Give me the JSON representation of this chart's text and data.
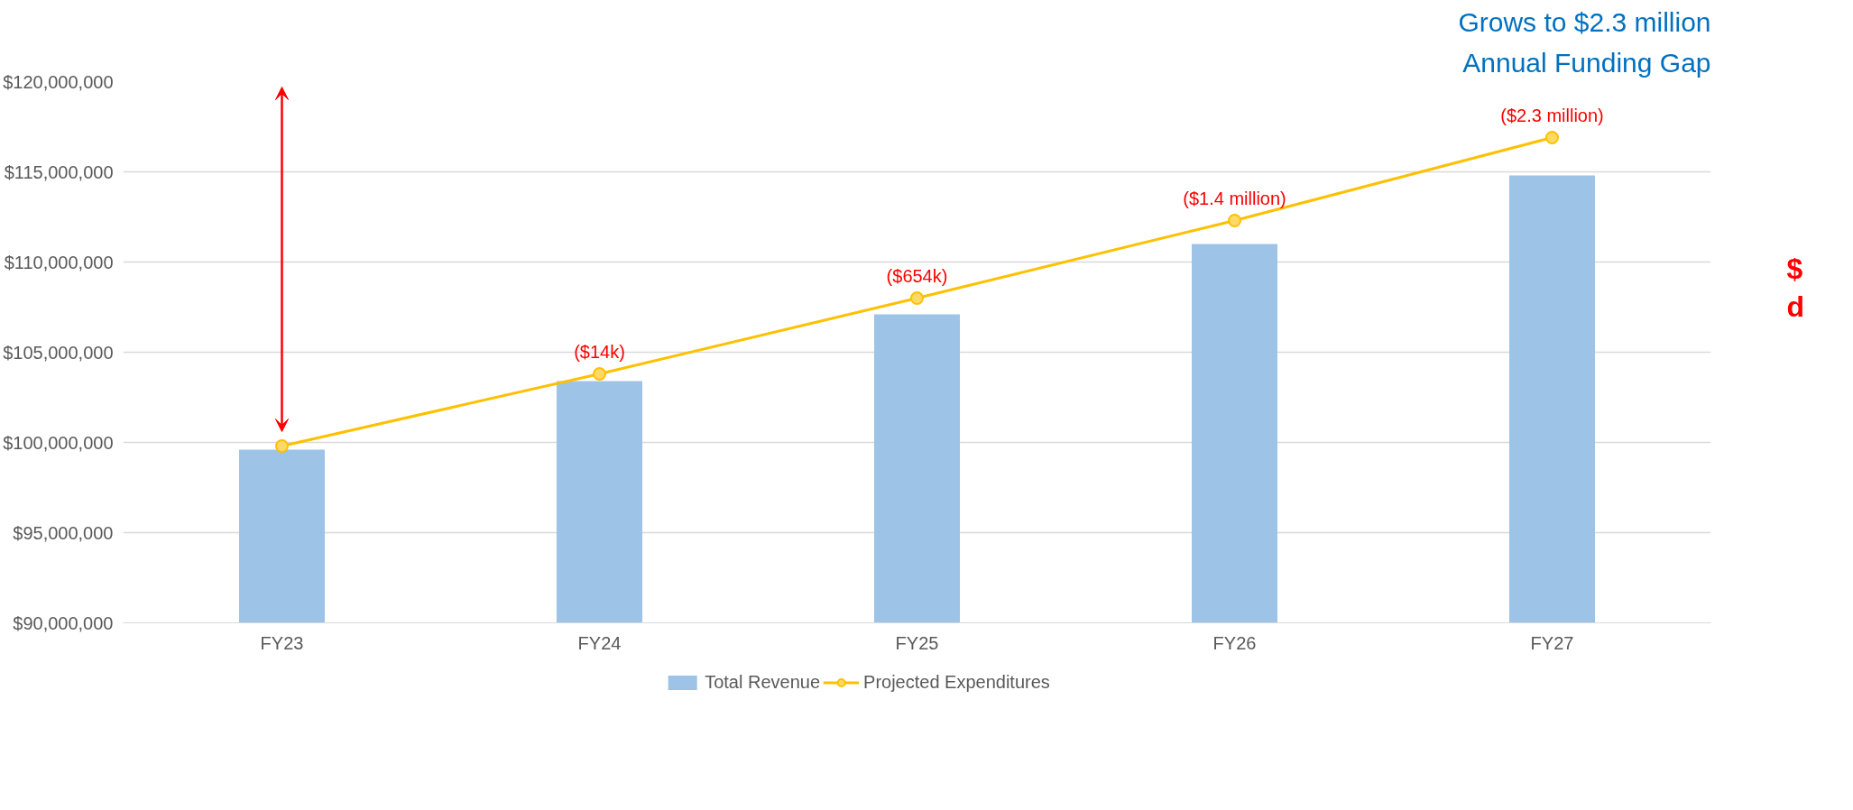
{
  "chart_data": {
    "type": "bar",
    "title": "Grows to $2.3 million",
    "subtitle": "Annual Funding Gap",
    "categories": [
      "FY23",
      "FY24",
      "FY25",
      "FY26",
      "FY27"
    ],
    "series": [
      {
        "name": "Total Revenue",
        "color": "#9dc3e6",
        "values": [
          99600000,
          103400000,
          107100000,
          111000000,
          114800000
        ]
      },
      {
        "name": "Projected Expenditures",
        "type": "line",
        "color": "#ffc000",
        "marker": "circle",
        "values": [
          99800000,
          103800000,
          108000000,
          112300000,
          116900000
        ]
      }
    ],
    "ylim": [
      90000000,
      120000000
    ],
    "yticks": [
      {
        "value": 90000000,
        "label": "$90,000,000"
      },
      {
        "value": 95000000,
        "label": "$95,000,000"
      },
      {
        "value": 100000000,
        "label": "$100,000,000"
      },
      {
        "value": 105000000,
        "label": "$105,000,000"
      },
      {
        "value": 110000000,
        "label": "$110,000,000"
      },
      {
        "value": 115000000,
        "label": "$115,000,000"
      },
      {
        "value": 120000000,
        "label": "$120,000,000"
      }
    ],
    "grid": "y",
    "legend": "bottom",
    "annotations": [
      {
        "text": "($14k)",
        "x": "FY24",
        "y": 103800000
      },
      {
        "text": "($654k)",
        "x": "FY25",
        "y": 108000000
      },
      {
        "text": "($1.4 million)",
        "x": "FY26",
        "y": 112300000
      },
      {
        "text": "($2.3 million)",
        "x": "FY27",
        "y": 116900000
      },
      "$",
      "d"
    ]
  }
}
